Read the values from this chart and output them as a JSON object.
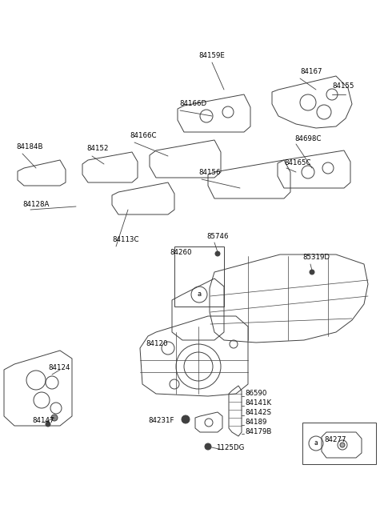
{
  "background_color": "#ffffff",
  "line_color": "#404040",
  "text_color": "#000000",
  "lw": 0.7,
  "fs": 6.2,
  "fig_w": 4.8,
  "fig_h": 6.56,
  "dpi": 100,
  "labels": [
    [
      "84159E",
      270,
      72
    ],
    [
      "84167",
      380,
      92
    ],
    [
      "84155",
      418,
      112
    ],
    [
      "84166D",
      228,
      132
    ],
    [
      "84698C",
      375,
      175
    ],
    [
      "84166C",
      170,
      172
    ],
    [
      "84165C",
      360,
      205
    ],
    [
      "84184B",
      32,
      185
    ],
    [
      "84152",
      118,
      188
    ],
    [
      "84156",
      255,
      218
    ],
    [
      "84128A",
      40,
      258
    ],
    [
      "84113C",
      148,
      303
    ],
    [
      "85746",
      265,
      298
    ],
    [
      "84260",
      218,
      318
    ],
    [
      "85319D",
      385,
      325
    ],
    [
      "84120",
      188,
      432
    ],
    [
      "84124",
      68,
      462
    ],
    [
      "84147",
      52,
      528
    ],
    [
      "86590",
      305,
      493
    ],
    [
      "84141K",
      305,
      507
    ],
    [
      "84142S",
      305,
      519
    ],
    [
      "84189",
      305,
      531
    ],
    [
      "84179B",
      305,
      543
    ],
    [
      "84231F",
      192,
      528
    ],
    [
      "1125DG",
      278,
      562
    ],
    [
      "84277",
      408,
      542
    ]
  ]
}
